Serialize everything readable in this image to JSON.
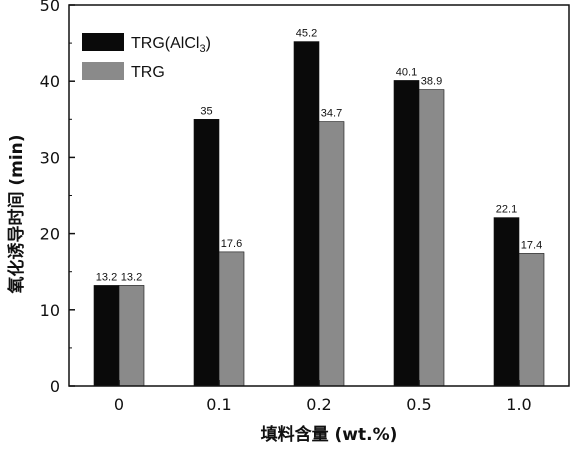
{
  "chart_data": {
    "type": "bar",
    "categories": [
      "0",
      "0.1",
      "0.2",
      "0.5",
      "1.0"
    ],
    "series": [
      {
        "name": "TRG(AlCl3)",
        "name_main": "TRG(AlCl",
        "name_sub": "3",
        "name_tail": ")",
        "color": "#0a0a0a",
        "values": [
          13.2,
          35,
          45.2,
          40.1,
          22.1
        ],
        "labels": [
          "13.2",
          "35",
          "45.2",
          "40.1",
          "22.1"
        ]
      },
      {
        "name": "TRG",
        "color": "#8a8a8a",
        "values": [
          13.2,
          17.6,
          34.7,
          38.9,
          17.4
        ],
        "labels": [
          "13.2",
          "17.6",
          "34.7",
          "38.9",
          "17.4"
        ]
      }
    ],
    "xlabel": "填料含量 (wt.%)",
    "ylabel": "氧化诱导时间 (min)",
    "ylim": [
      0,
      50
    ],
    "yticks": [
      0,
      10,
      20,
      30,
      40,
      50
    ],
    "grid": false,
    "legend_position": "top-left"
  }
}
